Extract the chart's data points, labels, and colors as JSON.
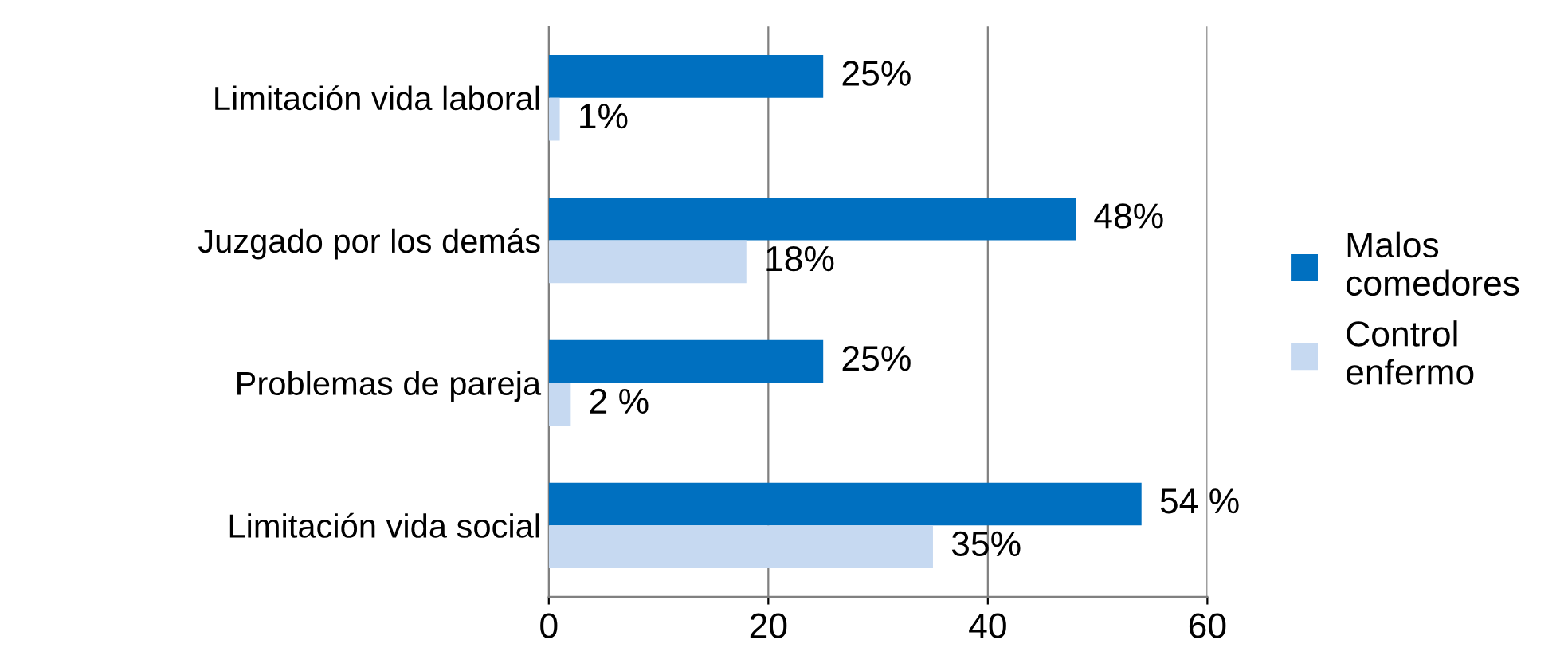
{
  "chart_data": {
    "type": "bar",
    "orientation": "horizontal",
    "categories": [
      "Limitación vida laboral",
      "Juzgado por los demás",
      "Problemas de pareja",
      "Limitación vida social"
    ],
    "series": [
      {
        "name": "Malos comedores",
        "color": "#0070c0",
        "values": [
          25,
          48,
          25,
          54
        ],
        "value_labels": [
          "25%",
          "48%",
          "25%",
          "54 %"
        ]
      },
      {
        "name": "Control enfermo",
        "color": "#c6d9f1",
        "values": [
          1,
          18,
          2,
          35
        ],
        "value_labels": [
          "1%",
          "18%",
          "2 %",
          "35%"
        ]
      }
    ],
    "xlim": [
      0,
      60
    ],
    "xticks": [
      0,
      20,
      40,
      60
    ],
    "grid": "x",
    "legend": "right"
  }
}
